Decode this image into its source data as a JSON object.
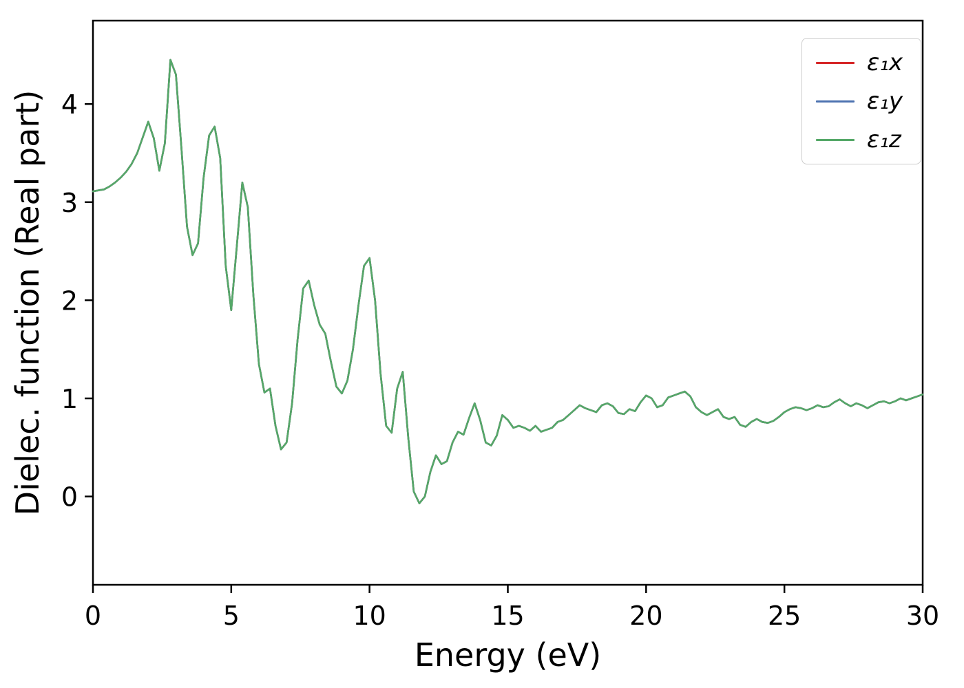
{
  "chart_data": {
    "type": "line",
    "title": "",
    "xlabel": "Energy (eV)",
    "ylabel": "Dielec. function (Real part)",
    "xlim": [
      0,
      30
    ],
    "ylim": [
      -0.9,
      4.85
    ],
    "xticks": [
      0,
      5,
      10,
      15,
      20,
      25,
      30
    ],
    "yticks": [
      0,
      1,
      2,
      3,
      4
    ],
    "grid": false,
    "legend_position": "upper right",
    "note": "All three series overlap exactly; only the green (last-drawn) curve is visible.",
    "x_start": 0,
    "x_step": 0.2,
    "y_shared": [
      3.11,
      3.12,
      3.13,
      3.16,
      3.2,
      3.25,
      3.31,
      3.39,
      3.5,
      3.66,
      3.82,
      3.65,
      3.32,
      3.6,
      4.45,
      4.3,
      3.55,
      2.75,
      2.46,
      2.58,
      3.25,
      3.68,
      3.77,
      3.45,
      2.35,
      1.9,
      2.55,
      3.2,
      2.95,
      2.05,
      1.35,
      1.06,
      1.1,
      0.72,
      0.48,
      0.55,
      0.95,
      1.6,
      2.12,
      2.2,
      1.95,
      1.75,
      1.66,
      1.38,
      1.12,
      1.05,
      1.18,
      1.5,
      1.95,
      2.35,
      2.43,
      2.0,
      1.25,
      0.72,
      0.65,
      1.1,
      1.27,
      0.6,
      0.05,
      -0.07,
      0.0,
      0.25,
      0.42,
      0.33,
      0.36,
      0.55,
      0.66,
      0.63,
      0.8,
      0.95,
      0.78,
      0.55,
      0.52,
      0.62,
      0.83,
      0.78,
      0.7,
      0.72,
      0.7,
      0.67,
      0.72,
      0.66,
      0.68,
      0.7,
      0.76,
      0.78,
      0.83,
      0.88,
      0.93,
      0.9,
      0.88,
      0.86,
      0.93,
      0.95,
      0.92,
      0.85,
      0.84,
      0.89,
      0.87,
      0.96,
      1.03,
      1.0,
      0.91,
      0.93,
      1.01,
      1.03,
      1.05,
      1.07,
      1.02,
      0.91,
      0.86,
      0.83,
      0.86,
      0.89,
      0.81,
      0.79,
      0.81,
      0.73,
      0.71,
      0.76,
      0.79,
      0.76,
      0.75,
      0.77,
      0.81,
      0.86,
      0.89,
      0.91,
      0.9,
      0.88,
      0.9,
      0.93,
      0.91,
      0.92,
      0.96,
      0.99,
      0.95,
      0.92,
      0.95,
      0.93,
      0.9,
      0.93,
      0.96,
      0.97,
      0.95,
      0.97,
      1.0,
      0.98,
      1.0,
      1.02,
      1.04
    ],
    "series": [
      {
        "label": "ε₁x",
        "color": "#d62728",
        "values": "y_shared"
      },
      {
        "label": "ε₁y",
        "color": "#4c72b0",
        "values": "y_shared"
      },
      {
        "label": "ε₁z",
        "color": "#55a868",
        "values": "y_shared"
      }
    ]
  }
}
